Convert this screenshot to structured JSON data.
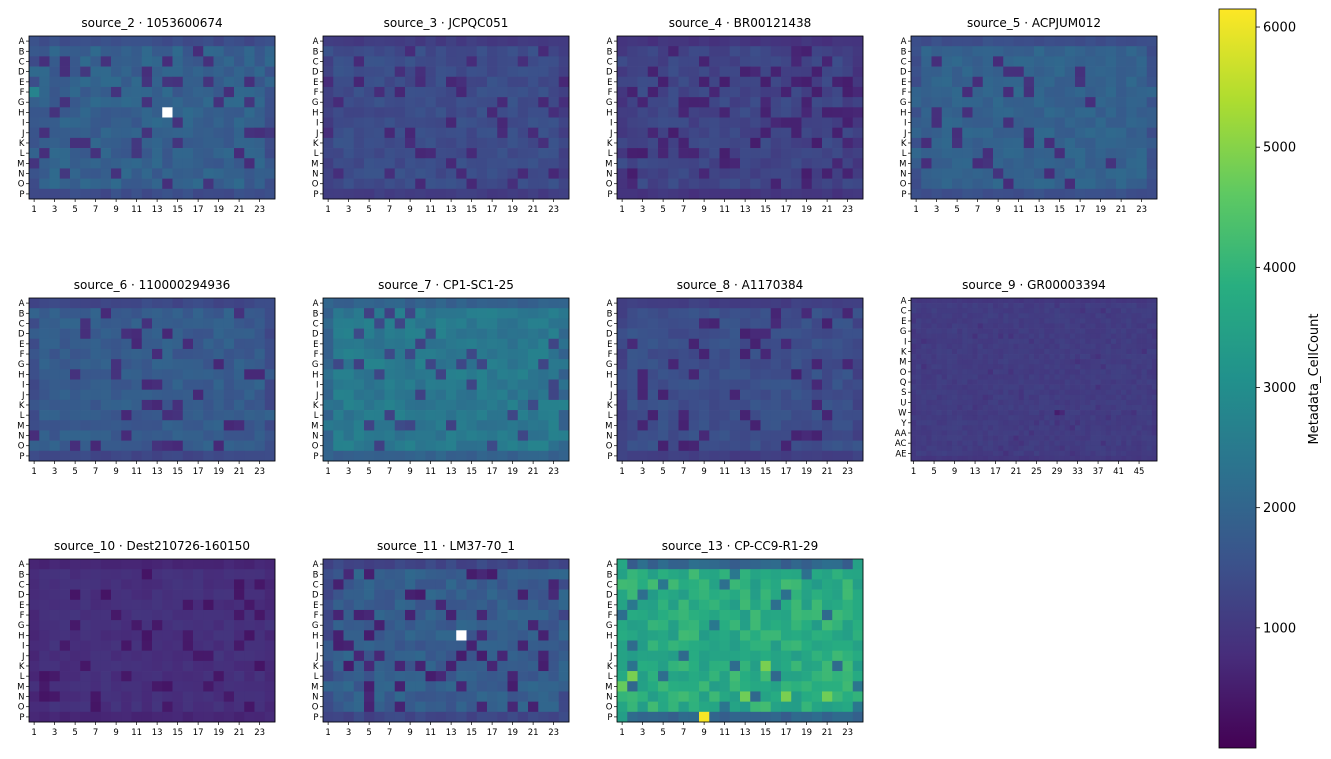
{
  "chart_data": {
    "type": "heatmap",
    "colorbar": {
      "label": "Metadata_CellCount",
      "range": [
        0,
        6150
      ],
      "ticks": [
        1000,
        2000,
        3000,
        4000,
        5000,
        6000
      ],
      "tick_labels": [
        "1000",
        "2000",
        "3000",
        "4000",
        "5000",
        "6000"
      ],
      "colormap": "viridis"
    },
    "panels": [
      {
        "title": "source_2 · 1053600674",
        "rows": [
          "A",
          "B",
          "C",
          "D",
          "E",
          "F",
          "G",
          "H",
          "I",
          "J",
          "K",
          "L",
          "M",
          "N",
          "O",
          "P"
        ],
        "row_tick_labels": [
          "A",
          "B",
          "C",
          "D",
          "E",
          "F",
          "G",
          "H",
          "I",
          "J",
          "K",
          "L",
          "M",
          "N",
          "O",
          "P"
        ],
        "cols": 24,
        "col_tick_labels": [
          "1",
          "3",
          "5",
          "7",
          "9",
          "11",
          "13",
          "15",
          "17",
          "19",
          "21",
          "23"
        ],
        "typical_value": 1900,
        "spread": 250,
        "dark_value": 900,
        "dark_fraction": 0.13,
        "edge_value": 1450,
        "outer_col_value": 1500,
        "missing_wells": [
          [
            7,
            13
          ]
        ],
        "special_wells": [
          [
            5,
            0,
            2750
          ]
        ]
      },
      {
        "title": "source_3 · JCPQC051",
        "rows": [
          "A",
          "B",
          "C",
          "D",
          "E",
          "F",
          "G",
          "H",
          "I",
          "J",
          "K",
          "L",
          "M",
          "N",
          "O",
          "P"
        ],
        "row_tick_labels": [
          "A",
          "B",
          "C",
          "D",
          "E",
          "F",
          "G",
          "H",
          "I",
          "J",
          "K",
          "L",
          "M",
          "N",
          "O",
          "P"
        ],
        "cols": 24,
        "col_tick_labels": [
          "1",
          "3",
          "5",
          "7",
          "9",
          "11",
          "13",
          "15",
          "17",
          "19",
          "21",
          "23"
        ],
        "typical_value": 1450,
        "spread": 180,
        "dark_value": 750,
        "dark_fraction": 0.12,
        "edge_value": 1100,
        "outer_col_value": 1150,
        "missing_wells": [],
        "special_wells": []
      },
      {
        "title": "source_4 · BR00121438",
        "rows": [
          "A",
          "B",
          "C",
          "D",
          "E",
          "F",
          "G",
          "H",
          "I",
          "J",
          "K",
          "L",
          "M",
          "N",
          "O",
          "P"
        ],
        "row_tick_labels": [
          "A",
          "B",
          "C",
          "D",
          "E",
          "F",
          "G",
          "H",
          "I",
          "J",
          "K",
          "L",
          "M",
          "N",
          "O",
          "P"
        ],
        "cols": 24,
        "col_tick_labels": [
          "1",
          "3",
          "5",
          "7",
          "9",
          "11",
          "13",
          "15",
          "17",
          "19",
          "21",
          "23"
        ],
        "typical_value": 1300,
        "spread": 200,
        "dark_value": 600,
        "dark_fraction": 0.18,
        "edge_value": 950,
        "outer_col_value": 950,
        "missing_wells": [],
        "special_wells": []
      },
      {
        "title": "source_5 · ACPJUM012",
        "rows": [
          "A",
          "B",
          "C",
          "D",
          "E",
          "F",
          "G",
          "H",
          "I",
          "J",
          "K",
          "L",
          "M",
          "N",
          "O",
          "P"
        ],
        "row_tick_labels": [
          "A",
          "B",
          "C",
          "D",
          "E",
          "F",
          "G",
          "H",
          "I",
          "J",
          "K",
          "L",
          "M",
          "N",
          "O",
          "P"
        ],
        "cols": 24,
        "col_tick_labels": [
          "1",
          "3",
          "5",
          "7",
          "9",
          "11",
          "13",
          "15",
          "17",
          "19",
          "21",
          "23"
        ],
        "typical_value": 1950,
        "spread": 180,
        "dark_value": 850,
        "dark_fraction": 0.09,
        "edge_value": 1500,
        "outer_col_value": 1500,
        "missing_wells": [],
        "special_wells": []
      },
      {
        "title": "source_6 · 110000294936",
        "rows": [
          "A",
          "B",
          "C",
          "D",
          "E",
          "F",
          "G",
          "H",
          "I",
          "J",
          "K",
          "L",
          "M",
          "N",
          "O",
          "P"
        ],
        "row_tick_labels": [
          "A",
          "B",
          "C",
          "D",
          "E",
          "F",
          "G",
          "H",
          "I",
          "J",
          "K",
          "L",
          "M",
          "N",
          "O",
          "P"
        ],
        "cols": 24,
        "col_tick_labels": [
          "1",
          "3",
          "5",
          "7",
          "9",
          "11",
          "13",
          "15",
          "17",
          "19",
          "21",
          "23"
        ],
        "typical_value": 1800,
        "spread": 220,
        "dark_value": 800,
        "dark_fraction": 0.12,
        "edge_value": 1350,
        "outer_col_value": 1400,
        "missing_wells": [],
        "special_wells": []
      },
      {
        "title": "source_7 · CP1-SC1-25",
        "rows": [
          "A",
          "B",
          "C",
          "D",
          "E",
          "F",
          "G",
          "H",
          "I",
          "J",
          "K",
          "L",
          "M",
          "N",
          "O",
          "P"
        ],
        "row_tick_labels": [
          "A",
          "B",
          "C",
          "D",
          "E",
          "F",
          "G",
          "H",
          "I",
          "J",
          "K",
          "L",
          "M",
          "N",
          "O",
          "P"
        ],
        "cols": 24,
        "col_tick_labels": [
          "1",
          "3",
          "5",
          "7",
          "9",
          "11",
          "13",
          "15",
          "17",
          "19",
          "21",
          "23"
        ],
        "typical_value": 2500,
        "spread": 250,
        "dark_value": 1300,
        "dark_fraction": 0.12,
        "edge_value": 1950,
        "outer_col_value": 2000,
        "missing_wells": [],
        "special_wells": []
      },
      {
        "title": "source_8 · A1170384",
        "rows": [
          "A",
          "B",
          "C",
          "D",
          "E",
          "F",
          "G",
          "H",
          "I",
          "J",
          "K",
          "L",
          "M",
          "N",
          "O",
          "P"
        ],
        "row_tick_labels": [
          "A",
          "B",
          "C",
          "D",
          "E",
          "F",
          "G",
          "H",
          "I",
          "J",
          "K",
          "L",
          "M",
          "N",
          "O",
          "P"
        ],
        "cols": 24,
        "col_tick_labels": [
          "1",
          "3",
          "5",
          "7",
          "9",
          "11",
          "13",
          "15",
          "17",
          "19",
          "21",
          "23"
        ],
        "typical_value": 1500,
        "spread": 180,
        "dark_value": 650,
        "dark_fraction": 0.11,
        "edge_value": 1150,
        "outer_col_value": 1200,
        "missing_wells": [],
        "special_wells": []
      },
      {
        "title": "source_9 · GR00003394",
        "rows": [
          "A",
          "B",
          "C",
          "D",
          "E",
          "F",
          "G",
          "H",
          "I",
          "J",
          "K",
          "L",
          "M",
          "N",
          "O",
          "P",
          "Q",
          "R",
          "S",
          "T",
          "U",
          "V",
          "W",
          "X",
          "Y",
          "Z",
          "AA",
          "AB",
          "AC",
          "AD",
          "AE",
          "AF"
        ],
        "row_tick_labels": [
          "A",
          "C",
          "E",
          "G",
          "I",
          "K",
          "M",
          "O",
          "Q",
          "S",
          "U",
          "W",
          "Y",
          "AA",
          "AC",
          "AE"
        ],
        "cols": 48,
        "col_tick_labels": [
          "1",
          "5",
          "9",
          "13",
          "17",
          "21",
          "25",
          "29",
          "33",
          "37",
          "41",
          "45"
        ],
        "typical_value": 1100,
        "spread": 100,
        "dark_value": 900,
        "dark_fraction": 0.03,
        "edge_value": 1000,
        "outer_col_value": 1000,
        "missing_wells": [],
        "special_wells": [
          [
            22,
            28,
            500
          ],
          [
            22,
            29,
            700
          ]
        ]
      },
      {
        "title": "source_10 · Dest210726-160150",
        "rows": [
          "A",
          "B",
          "C",
          "D",
          "E",
          "F",
          "G",
          "H",
          "I",
          "J",
          "K",
          "L",
          "M",
          "N",
          "O",
          "P"
        ],
        "row_tick_labels": [
          "A",
          "B",
          "C",
          "D",
          "E",
          "F",
          "G",
          "H",
          "I",
          "J",
          "K",
          "L",
          "M",
          "N",
          "O",
          "P"
        ],
        "cols": 24,
        "col_tick_labels": [
          "1",
          "3",
          "5",
          "7",
          "9",
          "11",
          "13",
          "15",
          "17",
          "19",
          "21",
          "23"
        ],
        "typical_value": 850,
        "spread": 120,
        "dark_value": 400,
        "dark_fraction": 0.13,
        "edge_value": 650,
        "outer_col_value": 700,
        "missing_wells": [],
        "special_wells": []
      },
      {
        "title": "source_11 · LM37-70_1",
        "rows": [
          "A",
          "B",
          "C",
          "D",
          "E",
          "F",
          "G",
          "H",
          "I",
          "J",
          "K",
          "L",
          "M",
          "N",
          "O",
          "P"
        ],
        "row_tick_labels": [
          "A",
          "B",
          "C",
          "D",
          "E",
          "F",
          "G",
          "H",
          "I",
          "J",
          "K",
          "L",
          "M",
          "N",
          "O",
          "P"
        ],
        "cols": 24,
        "col_tick_labels": [
          "1",
          "3",
          "5",
          "7",
          "9",
          "11",
          "13",
          "15",
          "17",
          "19",
          "21",
          "23"
        ],
        "typical_value": 1850,
        "spread": 260,
        "dark_value": 600,
        "dark_fraction": 0.13,
        "edge_value": 1300,
        "outer_col_value": 1400,
        "missing_wells": [
          [
            7,
            13
          ]
        ],
        "special_wells": []
      },
      {
        "title": "source_13 · CP-CC9-R1-29",
        "rows": [
          "A",
          "B",
          "C",
          "D",
          "E",
          "F",
          "G",
          "H",
          "I",
          "J",
          "K",
          "L",
          "M",
          "N",
          "O",
          "P"
        ],
        "row_tick_labels": [
          "A",
          "B",
          "C",
          "D",
          "E",
          "F",
          "G",
          "H",
          "I",
          "J",
          "K",
          "L",
          "M",
          "N",
          "O",
          "P"
        ],
        "cols": 24,
        "col_tick_labels": [
          "1",
          "3",
          "5",
          "7",
          "9",
          "11",
          "13",
          "15",
          "17",
          "19",
          "21",
          "23"
        ],
        "typical_value": 3800,
        "spread": 450,
        "dark_value": 2300,
        "dark_fraction": 0.1,
        "edge_value": 2000,
        "outer_col_value": 3600,
        "missing_wells": [],
        "special_wells": [
          [
            15,
            8,
            6100
          ],
          [
            12,
            0,
            4700
          ],
          [
            11,
            1,
            4900
          ],
          [
            13,
            12,
            4800
          ],
          [
            13,
            16,
            4900
          ],
          [
            13,
            20,
            4800
          ],
          [
            10,
            14,
            4900
          ]
        ]
      }
    ]
  }
}
